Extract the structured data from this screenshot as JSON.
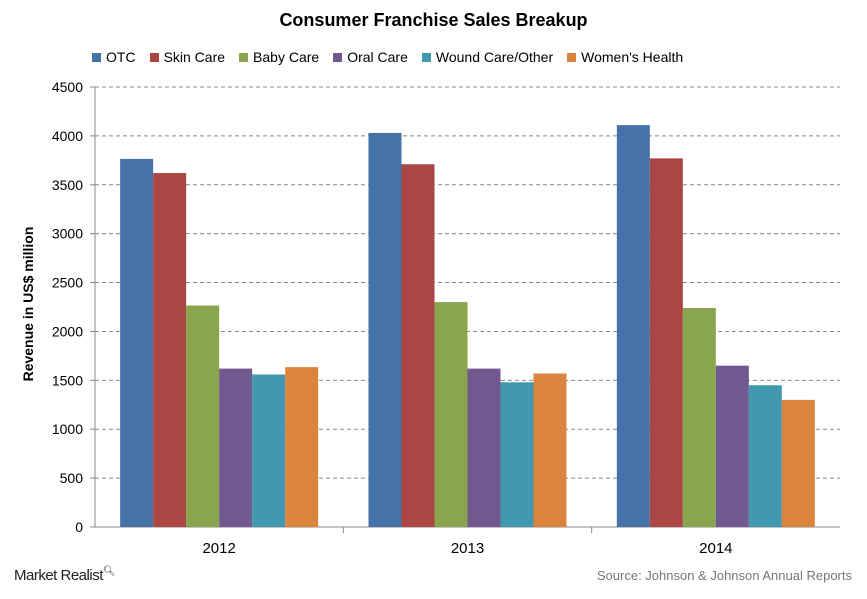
{
  "chart_data": {
    "type": "bar",
    "title": "Consumer Franchise Sales Breakup",
    "ylabel": "Revenue in US$ million",
    "xlabel": "",
    "ylim": [
      0,
      4500
    ],
    "yticks": [
      0,
      500,
      1000,
      1500,
      2000,
      2500,
      3000,
      3500,
      4000,
      4500
    ],
    "grid": true,
    "legend_placement": "top",
    "categories": [
      "2012",
      "2013",
      "2014"
    ],
    "series": [
      {
        "name": "OTC",
        "color": "#4572A7",
        "values": [
          3765,
          4030,
          4110
        ]
      },
      {
        "name": "Skin Care",
        "color": "#AA4643",
        "values": [
          3620,
          3710,
          3770
        ]
      },
      {
        "name": "Baby Care",
        "color": "#89A54E",
        "values": [
          2265,
          2300,
          2240
        ]
      },
      {
        "name": "Oral Care",
        "color": "#71588F",
        "values": [
          1620,
          1620,
          1650
        ]
      },
      {
        "name": "Wound Care/Other",
        "color": "#4198AF",
        "values": [
          1560,
          1480,
          1450
        ]
      },
      {
        "name": "Women's Health",
        "color": "#DB843D",
        "values": [
          1635,
          1570,
          1300
        ]
      }
    ]
  },
  "footer": {
    "logo": "Market Realist",
    "source": "Source: Johnson & Johnson Annual Reports"
  }
}
